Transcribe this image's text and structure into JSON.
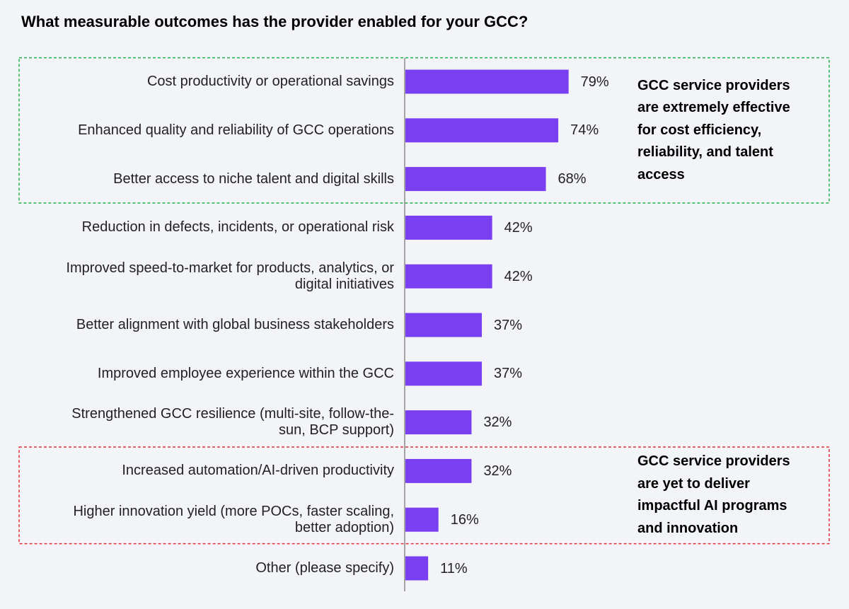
{
  "chart_data": {
    "type": "bar",
    "orientation": "horizontal",
    "title": "What measurable outcomes has the provider enabled for your GCC?",
    "categories": [
      "Cost productivity or operational savings",
      "Enhanced quality and reliability of GCC operations",
      "Better access to niche talent and digital skills",
      "Reduction in defects, incidents, or operational risk",
      "Improved speed-to-market for products, analytics, or digital initiatives",
      "Better alignment with global business stakeholders",
      "Improved employee experience within the GCC",
      "Strengthened GCC resilience (multi-site, follow-the-sun, BCP support)",
      "Increased automation/AI-driven productivity",
      "Higher innovation yield (more POCs, faster scaling, better adoption)",
      "Other (please specify)"
    ],
    "category_lines": [
      [
        "Cost productivity or operational savings"
      ],
      [
        "Enhanced quality and reliability of GCC operations"
      ],
      [
        "Better access to niche talent and digital skills"
      ],
      [
        "Reduction in defects, incidents, or operational risk"
      ],
      [
        "Improved speed-to-market for products, analytics, or",
        "digital initiatives"
      ],
      [
        "Better alignment with global business stakeholders"
      ],
      [
        "Improved employee experience within the GCC"
      ],
      [
        "Strengthened GCC resilience (multi-site, follow-the-",
        "sun, BCP support)"
      ],
      [
        "Increased automation/AI-driven productivity"
      ],
      [
        "Higher innovation yield (more POCs, faster scaling,",
        "better adoption)"
      ],
      [
        "Other (please specify)"
      ]
    ],
    "values": [
      79,
      74,
      68,
      42,
      42,
      37,
      37,
      32,
      32,
      16,
      11
    ],
    "value_labels": [
      "79%",
      "74%",
      "68%",
      "42%",
      "42%",
      "37%",
      "37%",
      "32%",
      "32%",
      "16%",
      "11%"
    ],
    "bar_color": "#7b3ff2",
    "callouts": [
      {
        "lines": [
          "GCC service providers",
          "are extremely effective",
          "for cost efficiency,",
          "reliability, and talent",
          "access"
        ],
        "border_color": "#22b04b",
        "first_index": 0,
        "last_index": 2
      },
      {
        "lines": [
          "GCC service providers",
          "are yet to deliver",
          "impactful AI programs",
          "and innovation"
        ],
        "border_color": "#e0303a",
        "first_index": 8,
        "last_index": 9
      }
    ]
  }
}
